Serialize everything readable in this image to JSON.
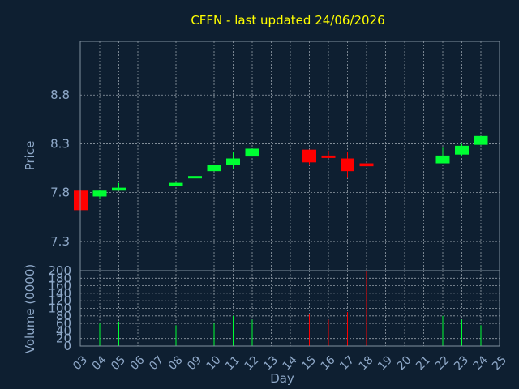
{
  "chart_data": {
    "type": "candlestick",
    "title": "CFFN - last updated 24/06/2026",
    "xlabel": "Day",
    "ylabel": "Price",
    "volume_ylabel": "Volume (0000)",
    "grid": true,
    "ylim": [
      7.0,
      9.35
    ],
    "volume_ylim": [
      0,
      200
    ],
    "price_ticks": [
      "7.3",
      "7.8",
      "8.3",
      "8.8"
    ],
    "volume_ticks": [
      "0",
      "20",
      "40",
      "60",
      "80",
      "100",
      "120",
      "140",
      "160",
      "180",
      "200"
    ],
    "x_ticks": [
      "03",
      "04",
      "05",
      "06",
      "07",
      "08",
      "09",
      "10",
      "11",
      "12",
      "13",
      "14",
      "15",
      "16",
      "17",
      "18",
      "19",
      "20",
      "21",
      "22",
      "23",
      "24",
      "25"
    ],
    "colors": {
      "background": "#0e1f31",
      "up": "#00ff33",
      "down": "#ff0000",
      "title": "#ffff00",
      "axis_text": "#8fa9c9",
      "grid": "#c0c8d0",
      "frame": "#8090a0"
    },
    "candles": [
      {
        "day": "03",
        "open": 7.82,
        "high": 7.83,
        "low": 7.62,
        "close": 7.62,
        "volume": 0
      },
      {
        "day": "04",
        "open": 7.76,
        "high": 7.83,
        "low": 7.74,
        "close": 7.82,
        "volume": 60
      },
      {
        "day": "05",
        "open": 7.82,
        "high": 7.9,
        "low": 7.82,
        "close": 7.85,
        "volume": 65
      },
      {
        "day": "08",
        "open": 7.87,
        "high": 7.91,
        "low": 7.87,
        "close": 7.9,
        "volume": 55
      },
      {
        "day": "09",
        "open": 7.95,
        "high": 8.13,
        "low": 7.95,
        "close": 7.97,
        "volume": 70
      },
      {
        "day": "10",
        "open": 8.02,
        "high": 8.08,
        "low": 8.02,
        "close": 8.08,
        "volume": 60
      },
      {
        "day": "11",
        "open": 8.08,
        "high": 8.22,
        "low": 8.04,
        "close": 8.15,
        "volume": 80
      },
      {
        "day": "12",
        "open": 8.17,
        "high": 8.25,
        "low": 8.17,
        "close": 8.25,
        "volume": 70
      },
      {
        "day": "15",
        "open": 8.24,
        "high": 8.24,
        "low": 8.09,
        "close": 8.11,
        "volume": 85
      },
      {
        "day": "16",
        "open": 8.18,
        "high": 8.23,
        "low": 8.17,
        "close": 8.17,
        "volume": 70
      },
      {
        "day": "17",
        "open": 8.15,
        "high": 8.22,
        "low": 7.95,
        "close": 8.02,
        "volume": 90
      },
      {
        "day": "18",
        "open": 8.1,
        "high": 8.1,
        "low": 8.07,
        "close": 8.07,
        "volume": 200
      },
      {
        "day": "22",
        "open": 8.1,
        "high": 8.26,
        "low": 8.1,
        "close": 8.18,
        "volume": 80
      },
      {
        "day": "23",
        "open": 8.19,
        "high": 8.3,
        "low": 8.17,
        "close": 8.28,
        "volume": 70
      },
      {
        "day": "24",
        "open": 8.29,
        "high": 8.38,
        "low": 8.29,
        "close": 8.38,
        "volume": 55
      }
    ]
  }
}
